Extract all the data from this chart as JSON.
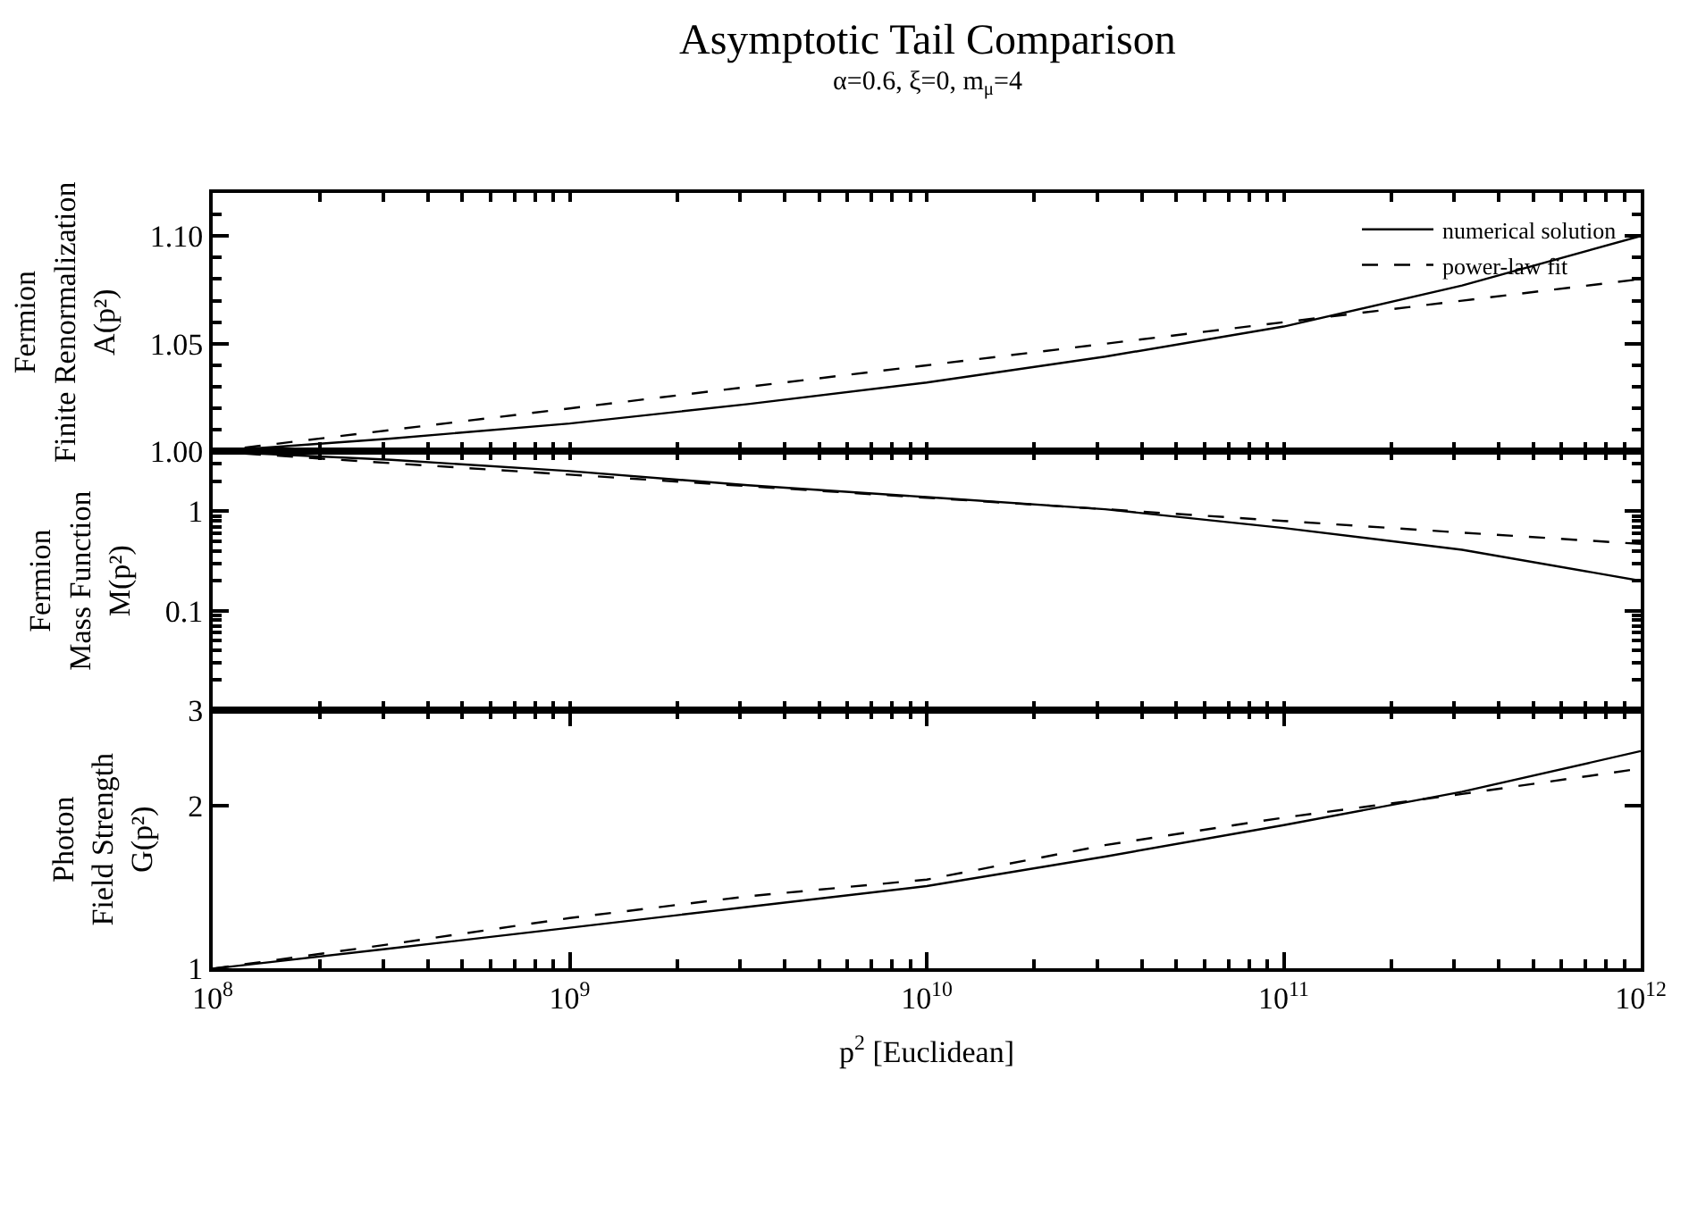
{
  "chart_data": [
    {
      "type": "line",
      "title": "Asymptotic Tail Comparison",
      "subtitle": "α=0.6, ξ=0, m$_{μ}$=4",
      "ylabel": "Fermion\nFinite Renormalization\nA(p²)",
      "log": "x",
      "x": [
        100000000.0,
        316000000.0,
        1000000000.0,
        3160000000.0,
        10000000000.0,
        31600000000.0,
        100000000000.0,
        316000000000.0,
        1000000000000.0
      ],
      "series": [
        {
          "name": "numerical solution",
          "color": "#000000",
          "line_style": "solid",
          "values": [
            1.0,
            1.006,
            1.013,
            1.022,
            1.032,
            1.044,
            1.058,
            1.077,
            1.1
          ]
        },
        {
          "name": "power-law fit",
          "color": "#000000",
          "line_style": "dashed",
          "values": [
            1.0,
            1.01,
            1.02,
            1.03,
            1.04,
            1.05,
            1.06,
            1.07,
            1.08
          ]
        }
      ],
      "xlim": [
        100000000.0,
        1000000000000.0
      ],
      "ylim": [
        1.0,
        1.12
      ],
      "yticks": [
        {
          "value": 1.0,
          "label": "1.00"
        },
        1.05,
        {
          "value": 1.1,
          "label": "1.10"
        }
      ],
      "legend": "top right",
      "tick_labels": "y"
    },
    {
      "type": "line",
      "ylabel": "Fermion\nMass Function\nM(p²)",
      "log": "xy",
      "x": [
        100000000.0,
        316000000.0,
        1000000000.0,
        3160000000.0,
        10000000000.0,
        31600000000.0,
        100000000000.0,
        316000000000.0,
        1000000000000.0
      ],
      "series": [
        {
          "color": "#000000",
          "line_style": "solid",
          "values": [
            4.0,
            3.3,
            2.54,
            1.83,
            1.39,
            1.05,
            0.68,
            0.41,
            0.2
          ]
        },
        {
          "color": "#000000",
          "line_style": "dashed",
          "values": [
            4.0,
            3.05,
            2.34,
            1.79,
            1.37,
            1.05,
            0.8,
            0.61,
            0.47
          ]
        }
      ],
      "xlim": [
        100000000.0,
        1000000000000.0
      ],
      "ylim": [
        0.01,
        4
      ],
      "yticks": [
        0.1,
        1
      ],
      "tick_labels": "y"
    },
    {
      "type": "line",
      "ylabel": "Photon\nField Strength\nG(p²)",
      "xlabel": "p$^{2}$ [Euclidean]",
      "log": "xy",
      "x": [
        100000000.0,
        316000000.0,
        1000000000.0,
        3160000000.0,
        10000000000.0,
        31600000000.0,
        100000000000.0,
        316000000000.0,
        1000000000000.0
      ],
      "series": [
        {
          "color": "#000000",
          "line_style": "solid",
          "values": [
            1.0,
            1.09,
            1.19,
            1.3,
            1.42,
            1.61,
            1.84,
            2.12,
            2.52
          ]
        },
        {
          "color": "#000000",
          "line_style": "dashed",
          "values": [
            1.0,
            1.11,
            1.24,
            1.36,
            1.46,
            1.69,
            1.9,
            2.1,
            2.34
          ]
        }
      ],
      "xlim": [
        100000000.0,
        1000000000000.0
      ],
      "ylim": [
        1,
        3
      ],
      "yticks": [
        1,
        2,
        3
      ],
      "xticks": [
        {
          "value": 100000000.0,
          "label": "10$^{8}$"
        },
        {
          "value": 1000000000.0,
          "label": "10$^{9}$"
        },
        {
          "value": 10000000000.0,
          "label": "10$^{10}$"
        },
        {
          "value": 100000000000.0,
          "label": "10$^{11}$"
        },
        {
          "value": 1000000000000.0,
          "label": "10$^{12}$"
        }
      ]
    }
  ]
}
